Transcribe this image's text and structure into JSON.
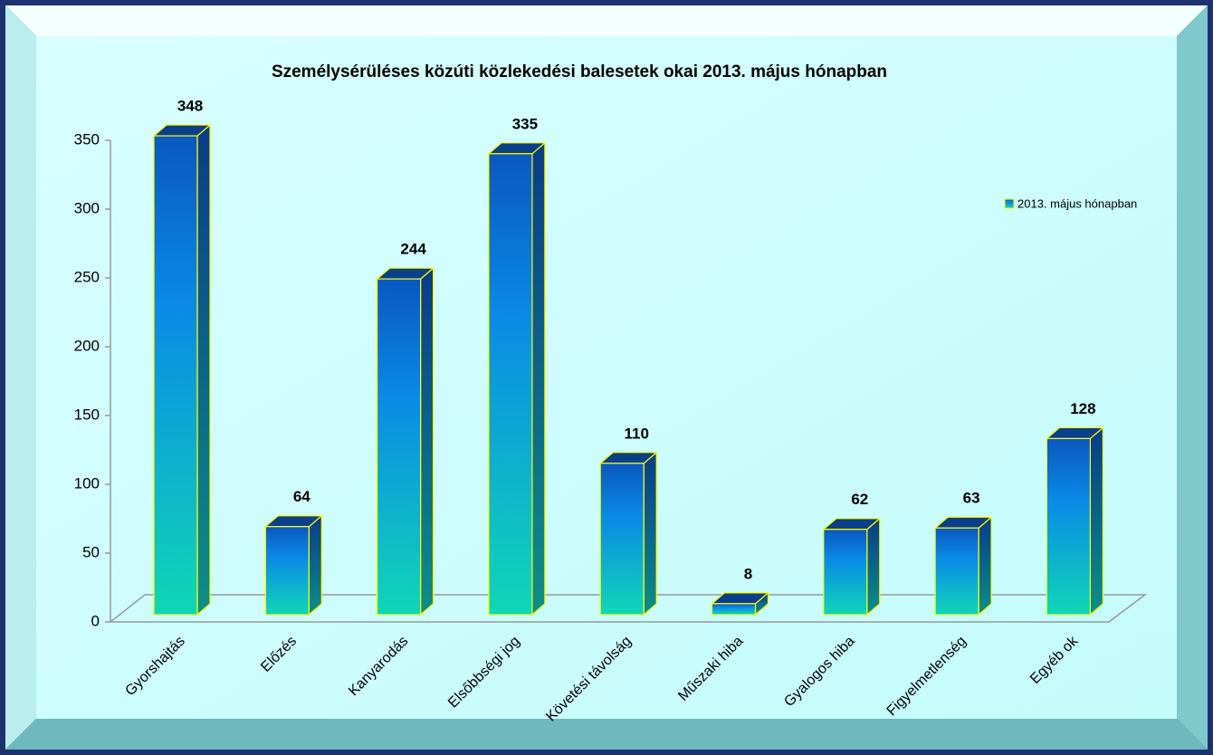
{
  "chart_data": {
    "type": "bar3d",
    "title": "Személysérüléses közúti közlekedési balesetek okai 2013. május hónapban",
    "categories": [
      "Gyorshajtás",
      "Előzés",
      "Kanyarodás",
      "Elsőbbségi jog",
      "Követési távolság",
      "Műszaki hiba",
      "Gyalogos hiba",
      "Figyelmetlenség",
      "Egyéb ok"
    ],
    "series": [
      {
        "name": "2013. május hónapban",
        "color": "#0a7ad8",
        "values": [
          348,
          64,
          244,
          335,
          110,
          8,
          62,
          63,
          128
        ]
      }
    ],
    "ylim": [
      0,
      350
    ],
    "yticks": [
      0,
      50,
      100,
      150,
      200,
      250,
      300,
      350
    ],
    "legend": "right"
  }
}
